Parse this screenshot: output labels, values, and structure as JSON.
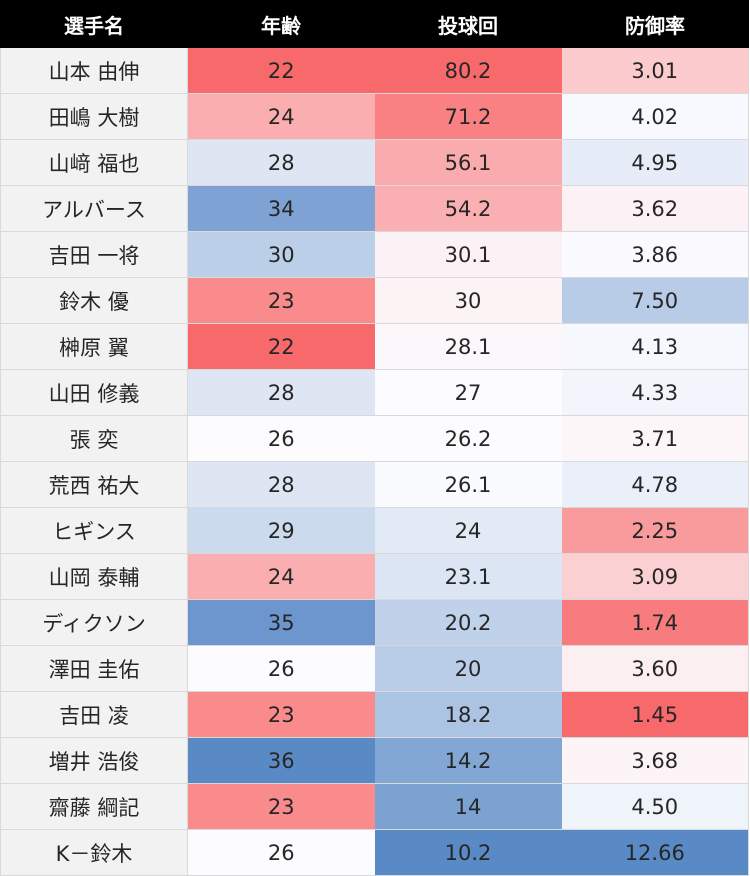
{
  "chart_data": {
    "type": "heatmap",
    "columns": [
      "選手名",
      "年齢",
      "投球回",
      "防御率"
    ],
    "rows": [
      {
        "name": "山本 由伸",
        "age": "22",
        "innings": "80.2",
        "era": "3.01"
      },
      {
        "name": "田嶋 大樹",
        "age": "24",
        "innings": "71.2",
        "era": "4.02"
      },
      {
        "name": "山﨑 福也",
        "age": "28",
        "innings": "56.1",
        "era": "4.95"
      },
      {
        "name": "アルバース",
        "age": "34",
        "innings": "54.2",
        "era": "3.62"
      },
      {
        "name": "吉田 一将",
        "age": "30",
        "innings": "30.1",
        "era": "3.86"
      },
      {
        "name": "鈴木 優",
        "age": "23",
        "innings": "30",
        "era": "7.50"
      },
      {
        "name": "榊原 翼",
        "age": "22",
        "innings": "28.1",
        "era": "4.13"
      },
      {
        "name": "山田 修義",
        "age": "28",
        "innings": "27",
        "era": "4.33"
      },
      {
        "name": "張 奕",
        "age": "26",
        "innings": "26.2",
        "era": "3.71"
      },
      {
        "name": "荒西 祐大",
        "age": "28",
        "innings": "26.1",
        "era": "4.78"
      },
      {
        "name": "ヒギンス",
        "age": "29",
        "innings": "24",
        "era": "2.25"
      },
      {
        "name": "山岡 泰輔",
        "age": "24",
        "innings": "23.1",
        "era": "3.09"
      },
      {
        "name": "ディクソン",
        "age": "35",
        "innings": "20.2",
        "era": "1.74"
      },
      {
        "name": "澤田 圭佑",
        "age": "26",
        "innings": "20",
        "era": "3.60"
      },
      {
        "name": "吉田 凌",
        "age": "23",
        "innings": "18.2",
        "era": "1.45"
      },
      {
        "name": "増井 浩俊",
        "age": "36",
        "innings": "14.2",
        "era": "3.68"
      },
      {
        "name": "齋藤 綱記",
        "age": "23",
        "innings": "14",
        "era": "4.50"
      },
      {
        "name": "K－鈴木",
        "age": "26",
        "innings": "10.2",
        "era": "12.66"
      }
    ]
  },
  "colors": {
    "header_bg": "#000000",
    "header_text": "#ffffff",
    "name_bg": "#f2f2f2",
    "good": "#f8696b",
    "mid": "#fcfcff",
    "bad": "#5a8ac6",
    "age_palette": {
      "22": "#f8696b",
      "23": "#f98b8d",
      "24": "#fbaeaf",
      "26": "#fcfcff",
      "28": "#dee6f3",
      "29": "#ccdaed",
      "30": "#bccfe8",
      "34": "#7da2d3",
      "35": "#6c96cd",
      "36": "#5a8ac6"
    }
  }
}
